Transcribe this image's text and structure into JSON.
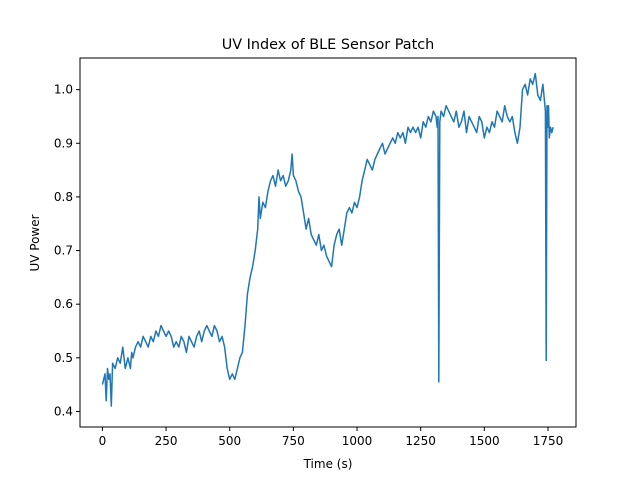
{
  "chart_data": {
    "type": "line",
    "title": "UV Index of BLE Sensor Patch",
    "xlabel": "Time (s)",
    "ylabel": "UV Power",
    "xlim": [
      -88,
      1860
    ],
    "ylim": [
      0.371,
      1.059
    ],
    "xticks": [
      0,
      250,
      500,
      750,
      1000,
      1250,
      1500,
      1750
    ],
    "yticks": [
      0.4,
      0.5,
      0.6,
      0.7,
      0.8,
      0.9,
      1.0
    ],
    "xtick_labels": [
      "0",
      "250",
      "500",
      "750",
      "1000",
      "1250",
      "1500",
      "1750"
    ],
    "ytick_labels": [
      "0.4",
      "0.5",
      "0.6",
      "0.7",
      "0.8",
      "0.9",
      "1.0"
    ],
    "grid": false,
    "series": [
      {
        "color": "#1f77b4",
        "x": [
          0,
          10,
          15,
          20,
          25,
          30,
          35,
          40,
          50,
          60,
          70,
          80,
          85,
          90,
          100,
          110,
          115,
          120,
          130,
          140,
          150,
          160,
          170,
          180,
          190,
          200,
          210,
          220,
          230,
          240,
          250,
          260,
          270,
          280,
          290,
          300,
          310,
          320,
          330,
          340,
          350,
          360,
          370,
          380,
          390,
          400,
          410,
          420,
          430,
          440,
          450,
          460,
          470,
          480,
          490,
          500,
          510,
          520,
          530,
          540,
          550,
          560,
          570,
          580,
          590,
          600,
          610,
          615,
          620,
          630,
          640,
          650,
          660,
          670,
          680,
          690,
          700,
          710,
          720,
          730,
          740,
          745,
          750,
          760,
          770,
          780,
          790,
          800,
          810,
          820,
          830,
          840,
          850,
          860,
          870,
          880,
          890,
          900,
          910,
          920,
          930,
          940,
          950,
          960,
          970,
          980,
          990,
          1000,
          1010,
          1020,
          1030,
          1040,
          1050,
          1060,
          1070,
          1080,
          1090,
          1100,
          1110,
          1120,
          1130,
          1140,
          1150,
          1160,
          1170,
          1180,
          1190,
          1200,
          1210,
          1220,
          1230,
          1240,
          1250,
          1260,
          1270,
          1280,
          1290,
          1300,
          1310,
          1315,
          1318,
          1321,
          1325,
          1330,
          1340,
          1350,
          1360,
          1370,
          1380,
          1390,
          1400,
          1410,
          1420,
          1430,
          1440,
          1450,
          1460,
          1470,
          1480,
          1490,
          1500,
          1510,
          1520,
          1530,
          1540,
          1550,
          1560,
          1570,
          1580,
          1590,
          1600,
          1610,
          1620,
          1630,
          1640,
          1650,
          1660,
          1670,
          1680,
          1690,
          1700,
          1710,
          1720,
          1730,
          1740,
          1743,
          1746,
          1749,
          1752,
          1755,
          1760,
          1765,
          1770
        ],
        "y": [
          0.45,
          0.47,
          0.42,
          0.48,
          0.46,
          0.47,
          0.41,
          0.49,
          0.48,
          0.5,
          0.49,
          0.52,
          0.5,
          0.48,
          0.5,
          0.48,
          0.51,
          0.5,
          0.52,
          0.53,
          0.52,
          0.54,
          0.53,
          0.52,
          0.54,
          0.53,
          0.55,
          0.54,
          0.56,
          0.55,
          0.54,
          0.55,
          0.54,
          0.52,
          0.53,
          0.52,
          0.54,
          0.53,
          0.51,
          0.54,
          0.53,
          0.52,
          0.54,
          0.55,
          0.53,
          0.55,
          0.56,
          0.55,
          0.54,
          0.56,
          0.55,
          0.53,
          0.54,
          0.52,
          0.48,
          0.46,
          0.47,
          0.46,
          0.48,
          0.5,
          0.51,
          0.56,
          0.62,
          0.65,
          0.67,
          0.7,
          0.74,
          0.8,
          0.76,
          0.79,
          0.78,
          0.81,
          0.83,
          0.84,
          0.82,
          0.85,
          0.83,
          0.84,
          0.82,
          0.83,
          0.85,
          0.88,
          0.84,
          0.83,
          0.81,
          0.8,
          0.77,
          0.74,
          0.76,
          0.73,
          0.72,
          0.71,
          0.73,
          0.7,
          0.71,
          0.69,
          0.68,
          0.67,
          0.71,
          0.73,
          0.74,
          0.71,
          0.74,
          0.77,
          0.78,
          0.77,
          0.79,
          0.78,
          0.8,
          0.83,
          0.85,
          0.87,
          0.86,
          0.85,
          0.87,
          0.88,
          0.89,
          0.9,
          0.88,
          0.89,
          0.9,
          0.91,
          0.9,
          0.92,
          0.91,
          0.92,
          0.9,
          0.93,
          0.92,
          0.93,
          0.92,
          0.93,
          0.91,
          0.94,
          0.93,
          0.95,
          0.94,
          0.96,
          0.95,
          0.93,
          0.95,
          0.455,
          0.94,
          0.96,
          0.95,
          0.97,
          0.96,
          0.95,
          0.94,
          0.96,
          0.93,
          0.94,
          0.96,
          0.92,
          0.95,
          0.94,
          0.93,
          0.92,
          0.95,
          0.94,
          0.91,
          0.93,
          0.92,
          0.94,
          0.93,
          0.96,
          0.95,
          0.94,
          0.97,
          0.95,
          0.94,
          0.95,
          0.92,
          0.9,
          0.93,
          1.0,
          1.01,
          0.99,
          1.02,
          1.01,
          1.03,
          0.99,
          0.98,
          1.01,
          0.96,
          0.495,
          0.97,
          0.93,
          0.97,
          0.91,
          0.93,
          0.92,
          0.93
        ]
      }
    ]
  }
}
